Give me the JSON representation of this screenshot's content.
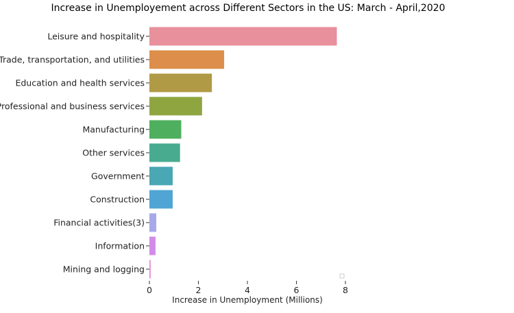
{
  "chart_data": {
    "type": "bar",
    "orientation": "horizontal",
    "title": "Increase in Unemployement across Different Sectors in the US: March - April,2020",
    "xlabel": "Increase in Unemployment (Millions)",
    "ylabel": "",
    "xlim": [
      0,
      8
    ],
    "xticks": [
      0,
      2,
      4,
      6,
      8
    ],
    "grid": false,
    "categories": [
      "Leisure and hospitality",
      "Trade, transportation, and utilities",
      "Education and health services",
      "Professional and business services",
      "Manufacturing",
      "Other services",
      "Government",
      "Construction",
      "Financial activities(3)",
      "Information",
      "Mining and logging"
    ],
    "values": [
      7.65,
      3.05,
      2.55,
      2.15,
      1.3,
      1.25,
      0.95,
      0.95,
      0.28,
      0.25,
      0.05
    ],
    "colors": [
      "#e8909c",
      "#dd8e4a",
      "#b09a45",
      "#8fa640",
      "#4eaf5e",
      "#48ab90",
      "#4aa7b4",
      "#50a5d4",
      "#a7a8ea",
      "#d18ce8",
      "#e88ad2"
    ]
  }
}
